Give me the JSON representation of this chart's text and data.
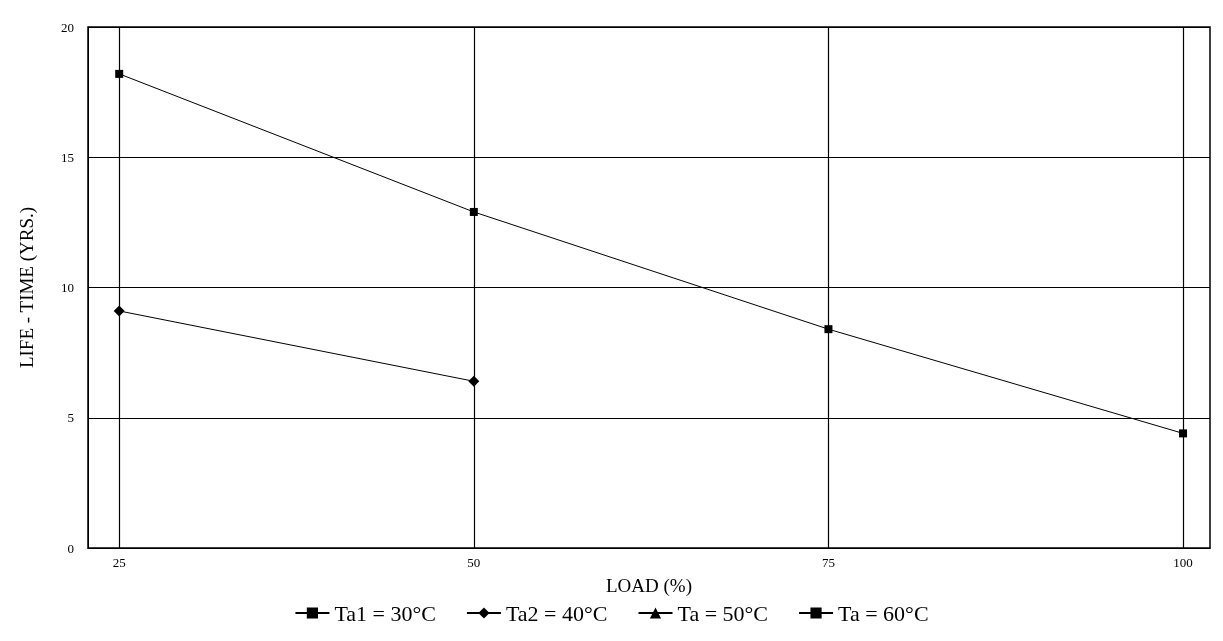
{
  "chart_data": {
    "type": "line",
    "xlabel": "LOAD (%)",
    "ylabel": "LIFE - TIME (YRS.)",
    "x": [
      25,
      50,
      75,
      100
    ],
    "series": [
      {
        "name": "Ta1 = 30°C",
        "color": "#000000",
        "marker": "square",
        "values": [
          18.2,
          12.9,
          8.4,
          4.4
        ]
      },
      {
        "name": "Ta2 = 40°C",
        "color": "#000000",
        "marker": "diamond",
        "values": [
          9.1,
          6.4,
          null,
          null
        ]
      },
      {
        "name": "Ta = 50°C",
        "color": "#000000",
        "marker": "triangle",
        "values": [
          null,
          null,
          null,
          null
        ]
      },
      {
        "name": "Ta = 60°C",
        "color": "#000000",
        "marker": "square",
        "values": [
          null,
          null,
          null,
          null
        ]
      }
    ],
    "xlim": [
      22.8,
      101.9
    ],
    "xticks": [
      25,
      50,
      75,
      100
    ],
    "ylim": [
      0,
      20
    ],
    "yticks": [
      0,
      5,
      10,
      15,
      20
    ],
    "grid": true,
    "legend": "bottom",
    "line_style": "solid"
  }
}
